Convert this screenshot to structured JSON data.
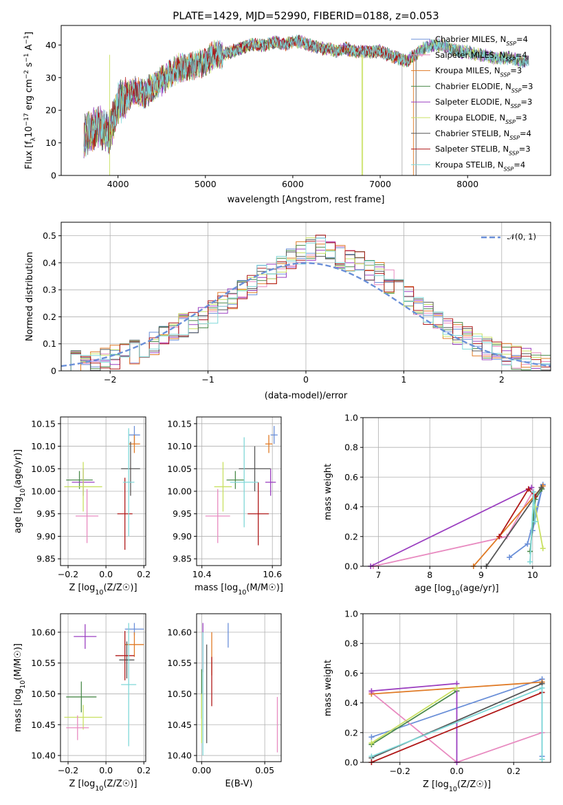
{
  "chart_data": [
    {
      "type": "line",
      "title": "PLATE=1429, MJD=52990, FIBERID=0188, z=0.053",
      "xlabel": "wavelength [Angstrom, rest frame]",
      "ylabel": "Flux [f_λ 10^-17 erg cm^-2 s^-1 A^-1]",
      "xlim": [
        3350,
        8950
      ],
      "ylim": [
        0,
        46
      ],
      "xticks": [
        4000,
        5000,
        6000,
        7000,
        8000
      ],
      "yticks": [
        0,
        10,
        20,
        30,
        40
      ],
      "grid": false,
      "legend_position": "top-right",
      "x_samples": [
        3610,
        3700,
        3800,
        3900,
        4000,
        4100,
        4200,
        4300,
        4400,
        4500,
        4600,
        4700,
        4800,
        4900,
        5000,
        5100,
        5200,
        5300,
        5400,
        5500,
        5600,
        5700,
        5800,
        5900,
        6000,
        6100,
        6200,
        6300,
        6400,
        6500,
        6600,
        6700,
        6800,
        6900,
        7000,
        7100,
        7200,
        7300,
        7400,
        7500,
        7600,
        7700,
        7800,
        7900,
        8000,
        8100,
        8200,
        8300,
        8400,
        8500,
        8600,
        8700
      ],
      "y_samples": [
        12,
        14,
        15,
        13,
        22,
        24,
        26,
        25,
        27,
        29,
        31,
        33,
        33,
        34,
        35,
        37,
        37,
        38,
        39,
        40,
        40,
        40,
        41,
        40,
        41,
        41,
        40,
        39,
        39,
        38,
        39,
        38,
        38,
        38,
        38,
        37,
        36,
        35,
        37,
        39,
        40,
        40,
        39,
        38,
        38,
        37,
        37,
        36,
        36,
        36,
        35,
        35
      ],
      "series": [
        {
          "name": "Chabrier MILES, N_SSP=4",
          "color": "#6a8fd8"
        },
        {
          "name": "Salpeter MILES, N_SSP=4",
          "color": "#e88ac0"
        },
        {
          "name": "Kroupa MILES, N_SSP=3",
          "color": "#e07a25"
        },
        {
          "name": "Chabrier ELODIE, N_SSP=3",
          "color": "#4a8a4a"
        },
        {
          "name": "Salpeter ELODIE, N_SSP=3",
          "color": "#9b3fc0"
        },
        {
          "name": "Kroupa ELODIE, N_SSP=3",
          "color": "#c8e060"
        },
        {
          "name": "Chabrier STELIB, N_SSP=4",
          "color": "#555555"
        },
        {
          "name": "Salpeter STELIB, N_SSP=3",
          "color": "#b01818"
        },
        {
          "name": "Kroupa STELIB, N_SSP=4",
          "color": "#7fd8d8"
        }
      ]
    },
    {
      "type": "bar",
      "xlabel": "(data-model)/error",
      "ylabel": "Normed distribution",
      "xlim": [
        -2.5,
        2.5
      ],
      "ylim": [
        0,
        0.55
      ],
      "xticks": [
        -2,
        -1,
        0,
        1,
        2
      ],
      "yticks": [
        0.0,
        0.1,
        0.2,
        0.3,
        0.4,
        0.5
      ],
      "grid": true,
      "legend_position": "top-right",
      "legend": "𝒩(0, 1)",
      "bin_width": 0.1,
      "bin_start": -2.5,
      "values": [
        0.02,
        0.03,
        0.03,
        0.04,
        0.04,
        0.05,
        0.06,
        0.07,
        0.09,
        0.1,
        0.13,
        0.15,
        0.17,
        0.18,
        0.19,
        0.22,
        0.25,
        0.27,
        0.3,
        0.32,
        0.35,
        0.36,
        0.38,
        0.42,
        0.44,
        0.45,
        0.46,
        0.44,
        0.42,
        0.41,
        0.4,
        0.38,
        0.36,
        0.33,
        0.3,
        0.27,
        0.24,
        0.21,
        0.18,
        0.16,
        0.14,
        0.12,
        0.1,
        0.08,
        0.07,
        0.06,
        0.05,
        0.04,
        0.03,
        0.02
      ],
      "normal_curve": {
        "mean": 0,
        "sigma": 1
      }
    },
    {
      "type": "scatter",
      "xlabel": "Z [log10(Z/Z☉)]",
      "ylabel": "age [log10(age/yr)]",
      "xlim": [
        -0.24,
        0.21
      ],
      "ylim": [
        9.835,
        10.165
      ],
      "xticks": [
        "-0.2",
        "0.0",
        "0.2"
      ],
      "xtick_values": [
        -0.2,
        0.0,
        0.2
      ],
      "yticks": [
        "9.85",
        "9.90",
        "9.95",
        "10.00",
        "10.05",
        "10.10",
        "10.15"
      ],
      "ytick_values": [
        9.85,
        9.9,
        9.95,
        10.0,
        10.05,
        10.1,
        10.15
      ],
      "points": [
        {
          "x": 0.15,
          "y": 10.125,
          "xerr": 0.03,
          "yerr": 0.02,
          "color": "#6a8fd8"
        },
        {
          "x": 0.15,
          "y": 10.105,
          "xerr": 0.03,
          "yerr": 0.02,
          "color": "#e07a25"
        },
        {
          "x": -0.14,
          "y": 10.025,
          "xerr": 0.07,
          "yerr": 0.02,
          "color": "#4a8a4a"
        },
        {
          "x": -0.12,
          "y": 10.02,
          "xerr": 0.06,
          "yerr": 0.03,
          "color": "#9b3fc0"
        },
        {
          "x": -0.12,
          "y": 10.01,
          "xerr": 0.1,
          "yerr": 0.055,
          "color": "#c8e060"
        },
        {
          "x": 0.13,
          "y": 10.05,
          "xerr": 0.05,
          "yerr": 0.06,
          "color": "#555555"
        },
        {
          "x": 0.1,
          "y": 9.95,
          "xerr": 0.04,
          "yerr": 0.08,
          "color": "#b01818"
        },
        {
          "x": 0.12,
          "y": 10.02,
          "xerr": 0.03,
          "yerr": 0.12,
          "color": "#7fd8d8"
        },
        {
          "x": -0.1,
          "y": 9.945,
          "xerr": 0.06,
          "yerr": 0.06,
          "color": "#e88ac0"
        }
      ]
    },
    {
      "type": "scatter",
      "xlabel": "mass [log10(M/M☉)]",
      "ylabel": "",
      "xlim": [
        10.385,
        10.625
      ],
      "ylim": [
        9.835,
        10.165
      ],
      "xticks": [
        "10.4",
        "10.6"
      ],
      "xtick_values": [
        10.4,
        10.6
      ],
      "yticks": [
        "9.85",
        "9.90",
        "9.95",
        "10.00",
        "10.05",
        "10.10",
        "10.15"
      ],
      "ytick_values": [
        9.85,
        9.9,
        9.95,
        10.0,
        10.05,
        10.1,
        10.15
      ],
      "points": [
        {
          "x": 10.605,
          "y": 10.125,
          "xerr": 0.01,
          "yerr": 0.02,
          "color": "#6a8fd8"
        },
        {
          "x": 10.59,
          "y": 10.105,
          "xerr": 0.01,
          "yerr": 0.02,
          "color": "#e07a25"
        },
        {
          "x": 10.495,
          "y": 10.025,
          "xerr": 0.025,
          "yerr": 0.02,
          "color": "#4a8a4a"
        },
        {
          "x": 10.595,
          "y": 10.02,
          "xerr": 0.015,
          "yerr": 0.03,
          "color": "#9b3fc0"
        },
        {
          "x": 10.46,
          "y": 10.01,
          "xerr": 0.025,
          "yerr": 0.055,
          "color": "#c8e060"
        },
        {
          "x": 10.55,
          "y": 10.05,
          "xerr": 0.045,
          "yerr": 0.05,
          "color": "#555555"
        },
        {
          "x": 10.56,
          "y": 9.95,
          "xerr": 0.03,
          "yerr": 0.07,
          "color": "#b01818"
        },
        {
          "x": 10.52,
          "y": 10.02,
          "xerr": 0.04,
          "yerr": 0.1,
          "color": "#7fd8d8"
        },
        {
          "x": 10.445,
          "y": 9.945,
          "xerr": 0.035,
          "yerr": 0.06,
          "color": "#e88ac0"
        }
      ]
    },
    {
      "type": "line",
      "xlabel": "age [log10(age/yr)]",
      "ylabel": "mass weight",
      "xlim": [
        6.7,
        10.35
      ],
      "ylim": [
        0,
        1
      ],
      "xticks": [
        "7",
        "8",
        "9",
        "10"
      ],
      "xtick_values": [
        7,
        8,
        9,
        10
      ],
      "yticks": [
        "0.0",
        "0.2",
        "0.4",
        "0.6",
        "0.8",
        "1.0"
      ],
      "ytick_values": [
        0.0,
        0.2,
        0.4,
        0.6,
        0.8,
        1.0
      ],
      "grid": true,
      "series": [
        {
          "color": "#6a8fd8",
          "x": [
            9.55,
            9.9,
            10.2,
            10.0
          ],
          "y": [
            0.06,
            0.15,
            0.55,
            0.24
          ]
        },
        {
          "color": "#e88ac0",
          "x": [
            6.9,
            9.5,
            10.0
          ],
          "y": [
            0.0,
            0.2,
            0.5
          ]
        },
        {
          "color": "#e07a25",
          "x": [
            8.85,
            10.2
          ],
          "y": [
            0.0,
            0.54
          ]
        },
        {
          "color": "#4a8a4a",
          "x": [
            9.95,
            10.05,
            10.18
          ],
          "y": [
            0.1,
            0.45,
            0.52
          ]
        },
        {
          "color": "#9b3fc0",
          "x": [
            6.85,
            9.98
          ],
          "y": [
            0.0,
            0.53
          ]
        },
        {
          "color": "#c8e060",
          "x": [
            10.05,
            10.2
          ],
          "y": [
            0.4,
            0.12
          ]
        },
        {
          "color": "#555555",
          "x": [
            9.1,
            10.17
          ],
          "y": [
            0.0,
            0.53
          ]
        },
        {
          "color": "#b01818",
          "x": [
            9.35,
            9.92,
            10.05
          ],
          "y": [
            0.2,
            0.52,
            0.47
          ]
        },
        {
          "color": "#7fd8d8",
          "x": [
            9.95,
            10.02,
            10.05
          ],
          "y": [
            0.03,
            0.5,
            0.3
          ]
        }
      ]
    },
    {
      "type": "scatter",
      "xlabel": "Z [log10(Z/Z☉)]",
      "ylabel": "mass [log10(M/M☉)]",
      "xlim": [
        -0.24,
        0.21
      ],
      "ylim": [
        10.39,
        10.63
      ],
      "xticks": [
        "-0.2",
        "0.0",
        "0.2"
      ],
      "xtick_values": [
        -0.2,
        0.0,
        0.2
      ],
      "yticks": [
        "10.40",
        "10.45",
        "10.50",
        "10.55",
        "10.60"
      ],
      "ytick_values": [
        10.4,
        10.45,
        10.5,
        10.55,
        10.6
      ],
      "points": [
        {
          "x": 0.15,
          "y": 10.605,
          "xerr": 0.05,
          "yerr": 0.01,
          "color": "#6a8fd8"
        },
        {
          "x": 0.15,
          "y": 10.58,
          "xerr": 0.05,
          "yerr": 0.02,
          "color": "#e07a25"
        },
        {
          "x": -0.13,
          "y": 10.495,
          "xerr": 0.08,
          "yerr": 0.025,
          "color": "#4a8a4a"
        },
        {
          "x": -0.11,
          "y": 10.593,
          "xerr": 0.06,
          "yerr": 0.02,
          "color": "#9b3fc0"
        },
        {
          "x": -0.12,
          "y": 10.462,
          "xerr": 0.1,
          "yerr": 0.02,
          "color": "#c8e060"
        },
        {
          "x": 0.11,
          "y": 10.555,
          "xerr": 0.04,
          "yerr": 0.03,
          "color": "#555555"
        },
        {
          "x": 0.1,
          "y": 10.562,
          "xerr": 0.05,
          "yerr": 0.04,
          "color": "#b01818"
        },
        {
          "x": 0.12,
          "y": 10.515,
          "xerr": 0.04,
          "yerr": 0.1,
          "color": "#7fd8d8"
        },
        {
          "x": -0.15,
          "y": 10.445,
          "xerr": 0.06,
          "yerr": 0.02,
          "color": "#e88ac0"
        }
      ]
    },
    {
      "type": "scatter",
      "xlabel": "E(B-V)",
      "ylabel": "",
      "xlim": [
        -0.004,
        0.063
      ],
      "ylim": [
        10.39,
        10.63
      ],
      "xticks": [
        "0.00",
        "0.05"
      ],
      "xtick_values": [
        0.0,
        0.05
      ],
      "yticks": [
        "10.40",
        "10.45",
        "10.50",
        "10.55",
        "10.60"
      ],
      "ytick_values": [
        10.4,
        10.45,
        10.5,
        10.55,
        10.6
      ],
      "points": [
        {
          "x": 0.021,
          "y": 10.595,
          "xerr": 0,
          "yerr": 0.02,
          "color": "#6a8fd8"
        },
        {
          "x": 0.008,
          "y": 10.565,
          "xerr": 0,
          "yerr": 0.035,
          "color": "#e07a25"
        },
        {
          "x": 0.0,
          "y": 10.5,
          "xerr": 0,
          "yerr": 0.04,
          "color": "#4a8a4a"
        },
        {
          "x": 0.001,
          "y": 10.575,
          "xerr": 0,
          "yerr": 0.04,
          "color": "#9b3fc0"
        },
        {
          "x": 0.0,
          "y": 10.46,
          "xerr": 0,
          "yerr": 0.04,
          "color": "#c8e060"
        },
        {
          "x": 0.004,
          "y": 10.5,
          "xerr": 0,
          "yerr": 0.08,
          "color": "#555555"
        },
        {
          "x": 0.008,
          "y": 10.52,
          "xerr": 0,
          "yerr": 0.04,
          "color": "#b01818"
        },
        {
          "x": 0.001,
          "y": 10.5,
          "xerr": 0,
          "yerr": 0.1,
          "color": "#7fd8d8"
        },
        {
          "x": 0.06,
          "y": 10.45,
          "xerr": 0,
          "yerr": 0.045,
          "color": "#e88ac0"
        }
      ]
    },
    {
      "type": "line",
      "xlabel": "Z [log10(Z/Z☉)]",
      "ylabel": "mass weight",
      "xlim": [
        -0.33,
        0.33
      ],
      "ylim": [
        0,
        1
      ],
      "xticks": [
        "-0.2",
        "0.0",
        "0.2"
      ],
      "xtick_values": [
        -0.2,
        0.0,
        0.2
      ],
      "yticks": [
        "0.0",
        "0.2",
        "0.4",
        "0.6",
        "0.8",
        "1.0"
      ],
      "ytick_values": [
        0.0,
        0.2,
        0.4,
        0.6,
        0.8,
        1.0
      ],
      "grid": true,
      "series": [
        {
          "color": "#6a8fd8",
          "x": [
            -0.3,
            0.3,
            0.3
          ],
          "y": [
            0.17,
            0.56,
            0.04
          ]
        },
        {
          "color": "#e88ac0",
          "x": [
            -0.3,
            0.0,
            0.3
          ],
          "y": [
            0.47,
            0.0,
            0.2
          ]
        },
        {
          "color": "#e07a25",
          "x": [
            -0.3,
            0.0,
            0.3
          ],
          "y": [
            0.46,
            0.5,
            0.54
          ]
        },
        {
          "color": "#4a8a4a",
          "x": [
            -0.3,
            0.0
          ],
          "y": [
            0.12,
            0.48
          ]
        },
        {
          "color": "#9b3fc0",
          "x": [
            -0.3,
            0.0,
            0.0
          ],
          "y": [
            0.48,
            0.53,
            0.0
          ]
        },
        {
          "color": "#c8e060",
          "x": [
            -0.3,
            0.0
          ],
          "y": [
            0.13,
            0.5
          ]
        },
        {
          "color": "#555555",
          "x": [
            -0.3,
            0.3
          ],
          "y": [
            0.03,
            0.53
          ]
        },
        {
          "color": "#b01818",
          "x": [
            -0.3,
            0.3
          ],
          "y": [
            0.0,
            0.47
          ]
        },
        {
          "color": "#7fd8d8",
          "x": [
            -0.3,
            0.3,
            0.3
          ],
          "y": [
            0.04,
            0.5,
            0.02
          ]
        }
      ]
    }
  ]
}
